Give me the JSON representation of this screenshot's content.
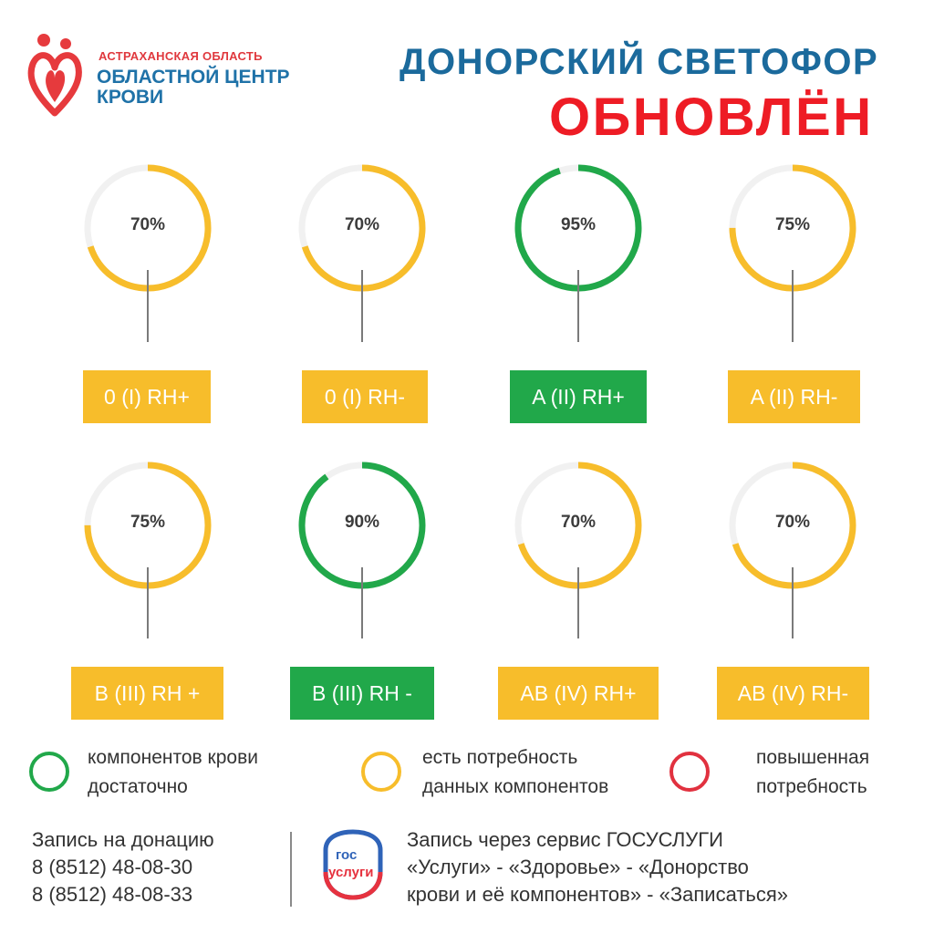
{
  "header": {
    "region": "АСТРАХАНСКАЯ ОБЛАСТЬ",
    "org_line1": "ОБЛАСТНОЙ ЦЕНТР",
    "org_line2": "КРОВИ",
    "title": "ДОНОРСКИЙ СВЕТОФОР",
    "subtitle": "ОБНОВЛЁН"
  },
  "colors": {
    "yellow": "#f7bd2b",
    "green": "#21a84a",
    "red": "#e1313f",
    "track": "#f1f1f1"
  },
  "gauges": [
    {
      "percent": "70%",
      "value": 70,
      "label": "0 (I) RH+",
      "status": "yellow"
    },
    {
      "percent": "70%",
      "value": 70,
      "label": "0 (I) RH-",
      "status": "yellow"
    },
    {
      "percent": "95%",
      "value": 95,
      "label": "A (II) RH+",
      "status": "green"
    },
    {
      "percent": "75%",
      "value": 75,
      "label": "A (II) RH-",
      "status": "yellow"
    },
    {
      "percent": "75%",
      "value": 75,
      "label": "B (III) RH +",
      "status": "yellow"
    },
    {
      "percent": "90%",
      "value": 90,
      "label": "B (III) RH -",
      "status": "green"
    },
    {
      "percent": "70%",
      "value": 70,
      "label": "AB (IV) RH+",
      "status": "yellow"
    },
    {
      "percent": "70%",
      "value": 70,
      "label": "AB (IV) RH-",
      "status": "yellow"
    }
  ],
  "legend": [
    {
      "line1": "компонентов крови",
      "line2": "достаточно",
      "status": "green"
    },
    {
      "line1": "есть потребность",
      "line2": "данных компонентов",
      "status": "yellow"
    },
    {
      "line1": "повышенная",
      "line2": "потребность",
      "status": "red"
    }
  ],
  "footer": {
    "donation_title": "Запись на донацию",
    "phone1": "8 (8512) 48-08-30",
    "phone2": "8 (8512) 48-08-33",
    "gos_logo_line1": "гос",
    "gos_logo_line2": "услуги",
    "service_line1": "Запись через сервис ГОСУСЛУГИ",
    "service_line2": "«Услуги» - «Здоровье» - «Донорство",
    "service_line3": "крови и её компонентов» - «Записаться»"
  }
}
